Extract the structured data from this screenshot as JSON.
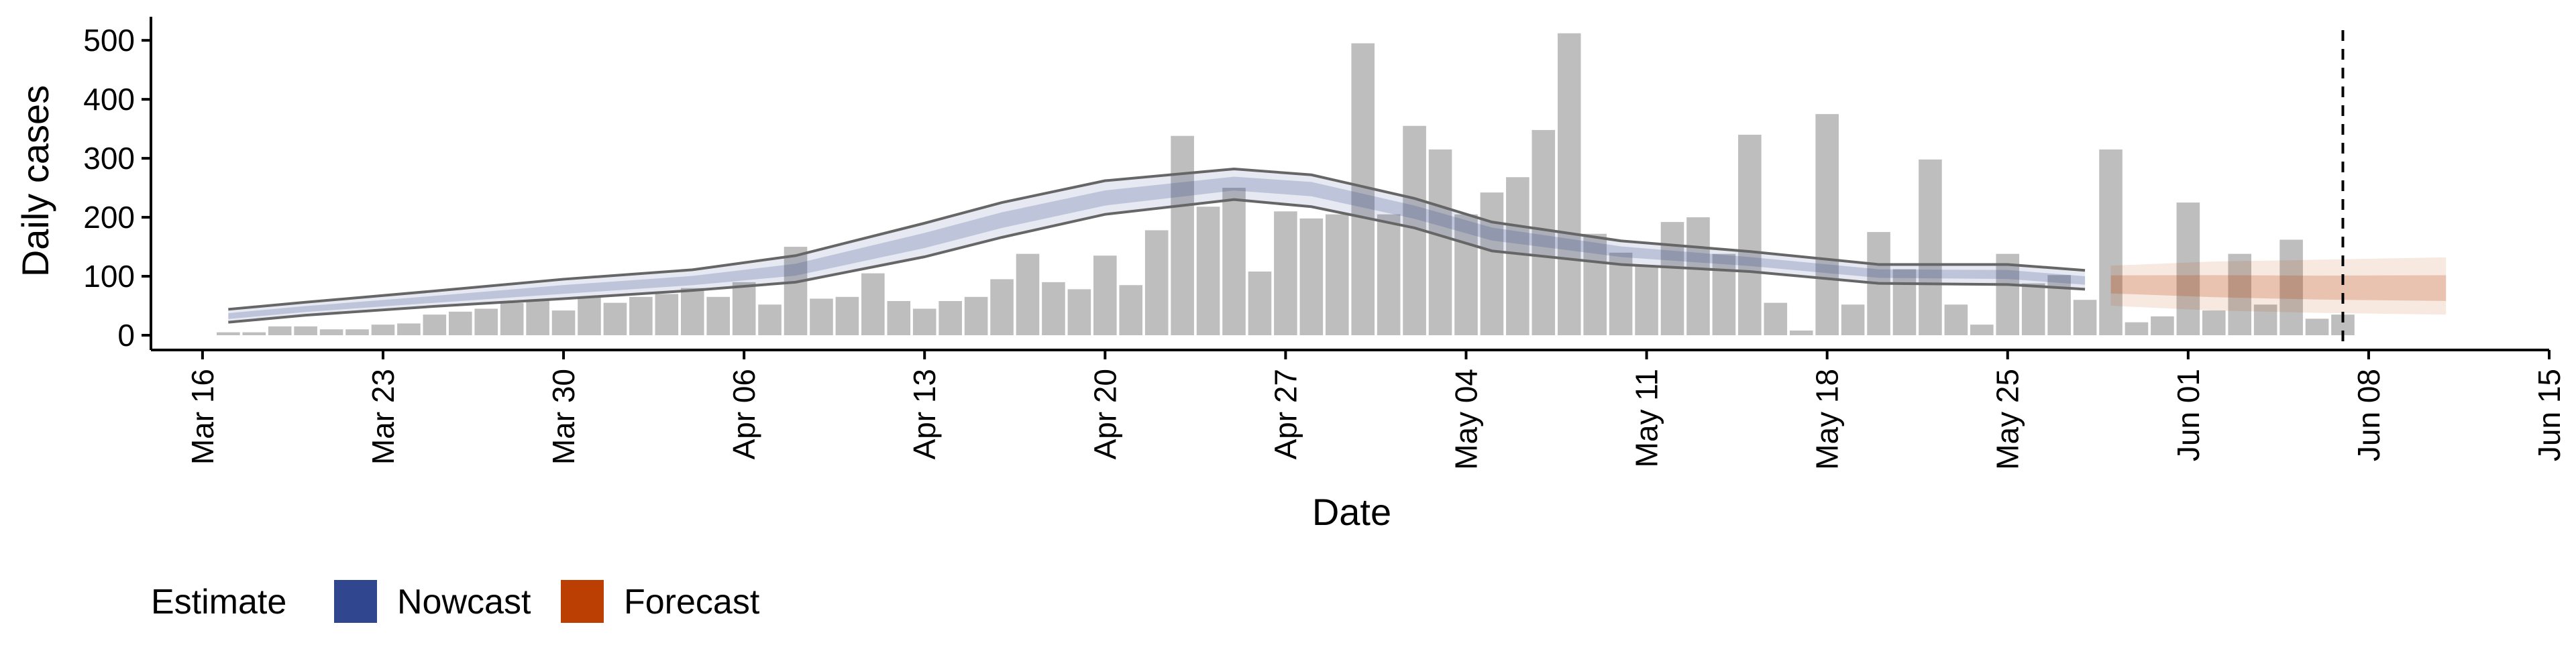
{
  "chart_data": {
    "type": "bar",
    "title": "",
    "xlabel": "Date",
    "ylabel": "Daily cases",
    "xlim": [
      "2020-03-14",
      "2020-06-15"
    ],
    "ylim": [
      -25,
      540
    ],
    "x_ticks": [
      {
        "date": "2020-03-16",
        "label": "Mar 16"
      },
      {
        "date": "2020-03-23",
        "label": "Mar 23"
      },
      {
        "date": "2020-03-30",
        "label": "Mar 30"
      },
      {
        "date": "2020-04-06",
        "label": "Apr 06"
      },
      {
        "date": "2020-04-13",
        "label": "Apr 13"
      },
      {
        "date": "2020-04-20",
        "label": "Apr 20"
      },
      {
        "date": "2020-04-27",
        "label": "Apr 27"
      },
      {
        "date": "2020-05-04",
        "label": "May 04"
      },
      {
        "date": "2020-05-11",
        "label": "May 11"
      },
      {
        "date": "2020-05-18",
        "label": "May 18"
      },
      {
        "date": "2020-05-25",
        "label": "May 25"
      },
      {
        "date": "2020-06-01",
        "label": "Jun 01"
      },
      {
        "date": "2020-06-08",
        "label": "Jun 08"
      },
      {
        "date": "2020-06-15",
        "label": "Jun 15"
      }
    ],
    "y_ticks": [
      0,
      100,
      200,
      300,
      400,
      500
    ],
    "grid": false,
    "bar_color": "#bebebe",
    "bars": {
      "x": [
        "2020-03-17",
        "2020-03-18",
        "2020-03-19",
        "2020-03-20",
        "2020-03-21",
        "2020-03-22",
        "2020-03-23",
        "2020-03-24",
        "2020-03-25",
        "2020-03-26",
        "2020-03-27",
        "2020-03-28",
        "2020-03-29",
        "2020-03-30",
        "2020-03-31",
        "2020-04-01",
        "2020-04-02",
        "2020-04-03",
        "2020-04-04",
        "2020-04-05",
        "2020-04-06",
        "2020-04-07",
        "2020-04-08",
        "2020-04-09",
        "2020-04-10",
        "2020-04-11",
        "2020-04-12",
        "2020-04-13",
        "2020-04-14",
        "2020-04-15",
        "2020-04-16",
        "2020-04-17",
        "2020-04-18",
        "2020-04-19",
        "2020-04-20",
        "2020-04-21",
        "2020-04-22",
        "2020-04-23",
        "2020-04-24",
        "2020-04-25",
        "2020-04-26",
        "2020-04-27",
        "2020-04-28",
        "2020-04-29",
        "2020-04-30",
        "2020-05-01",
        "2020-05-02",
        "2020-05-03",
        "2020-05-04",
        "2020-05-05",
        "2020-05-06",
        "2020-05-07",
        "2020-05-08",
        "2020-05-09",
        "2020-05-10",
        "2020-05-11",
        "2020-05-12",
        "2020-05-13",
        "2020-05-14",
        "2020-05-15",
        "2020-05-16",
        "2020-05-17",
        "2020-05-18",
        "2020-05-19",
        "2020-05-20",
        "2020-05-21",
        "2020-05-22",
        "2020-05-23",
        "2020-05-24",
        "2020-05-25",
        "2020-05-26",
        "2020-05-27",
        "2020-05-28",
        "2020-05-29",
        "2020-05-30",
        "2020-05-31",
        "2020-06-01",
        "2020-06-02",
        "2020-06-03",
        "2020-06-04",
        "2020-06-05",
        "2020-06-06",
        "2020-06-07"
      ],
      "values": [
        5,
        5,
        15,
        15,
        10,
        10,
        18,
        20,
        35,
        40,
        45,
        55,
        60,
        42,
        65,
        55,
        65,
        70,
        80,
        65,
        90,
        52,
        150,
        62,
        65,
        105,
        58,
        45,
        58,
        65,
        95,
        138,
        90,
        78,
        135,
        85,
        178,
        338,
        218,
        250,
        108,
        210,
        198,
        205,
        495,
        205,
        355,
        315,
        205,
        242,
        268,
        348,
        512,
        172,
        140,
        118,
        192,
        200,
        138,
        340,
        55,
        8,
        375,
        52,
        175,
        112,
        298,
        52,
        18,
        138,
        88,
        102,
        60,
        315,
        22,
        32,
        225,
        42,
        138,
        52,
        162,
        28,
        35
      ]
    },
    "series": [
      {
        "name": "Nowcast",
        "color": "#30468f",
        "x": [
          "2020-03-17",
          "2020-03-20",
          "2020-03-25",
          "2020-03-30",
          "2020-04-04",
          "2020-04-08",
          "2020-04-13",
          "2020-04-16",
          "2020-04-20",
          "2020-04-25",
          "2020-04-28",
          "2020-05-02",
          "2020-05-05",
          "2020-05-10",
          "2020-05-15",
          "2020-05-20",
          "2020-05-25",
          "2020-05-28"
        ],
        "median": [
          32,
          44,
          60,
          77,
          92,
          110,
          160,
          195,
          232,
          258,
          250,
          210,
          175,
          143,
          125,
          105,
          103,
          92
        ],
        "lower_90": [
          22,
          34,
          49,
          62,
          76,
          90,
          133,
          166,
          205,
          230,
          218,
          182,
          143,
          120,
          108,
          88,
          86,
          78
        ],
        "upper_90": [
          44,
          56,
          75,
          95,
          111,
          135,
          190,
          225,
          262,
          282,
          272,
          232,
          192,
          160,
          142,
          120,
          120,
          110
        ]
      },
      {
        "name": "Forecast",
        "color": "#bb3e03",
        "x": [
          "2020-05-29",
          "2020-06-02",
          "2020-06-06",
          "2020-06-11"
        ],
        "median": [
          88,
          83,
          79,
          77
        ],
        "lower_90": [
          50,
          42,
          38,
          35
        ],
        "upper_90": [
          118,
          125,
          128,
          132
        ]
      }
    ],
    "reference_line": {
      "date": "2020-06-07",
      "style": "dashed"
    },
    "legend": {
      "title": "Estimate",
      "placement": "bottom-left",
      "entries": [
        {
          "label": "Nowcast",
          "color": "#30468f"
        },
        {
          "label": "Forecast",
          "color": "#bb3e03"
        }
      ]
    }
  }
}
